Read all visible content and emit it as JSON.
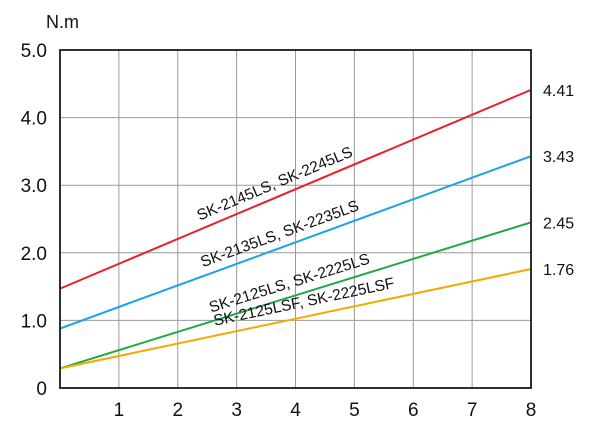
{
  "chart_data": {
    "type": "line",
    "ylabel": "N.m",
    "xlim": [
      0,
      8
    ],
    "ylim": [
      0,
      5
    ],
    "grid": true,
    "x_ticks": [
      "1",
      "2",
      "3",
      "4",
      "5",
      "6",
      "7",
      "8"
    ],
    "y_ticks": [
      "0",
      "1.0",
      "2.0",
      "3.0",
      "4.0",
      "5.0"
    ],
    "series": [
      {
        "name": "SK-2145LS, SK-2245LS",
        "color": "#e8202a",
        "x": [
          0,
          8
        ],
        "values": [
          1.47,
          4.41
        ],
        "end_label": "4.41"
      },
      {
        "name": "SK-2135LS, SK-2235LS",
        "color": "#1aa3e8",
        "x": [
          0,
          8
        ],
        "values": [
          0.88,
          3.43
        ],
        "end_label": "3.43"
      },
      {
        "name": "SK-2125LS, SK-2225LS",
        "color": "#22a845",
        "x": [
          0,
          8
        ],
        "values": [
          0.29,
          2.45
        ],
        "end_label": "2.45"
      },
      {
        "name": "SK-2125LSF, SK-2225LSF",
        "color": "#f5a800",
        "x": [
          0,
          8
        ],
        "values": [
          0.29,
          1.76
        ],
        "end_label": "1.76"
      }
    ]
  }
}
